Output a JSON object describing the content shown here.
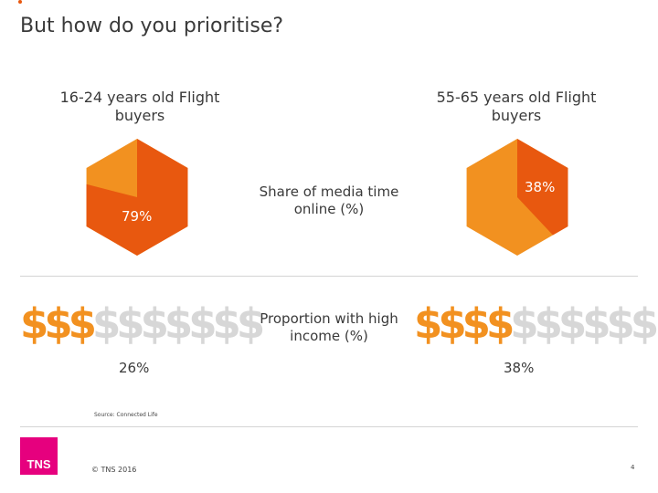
{
  "slide": {
    "title": "But how do you prioritise?",
    "page_number": "4",
    "source": "Source: Connected Life",
    "copyright": "© TNS 2016",
    "logo": "TNS"
  },
  "groups": [
    {
      "label": "16-24 years old Flight buyers"
    },
    {
      "label": "55-65 years old Flight buyers"
    }
  ],
  "metrics": {
    "media_label": "Share of media time online (%)",
    "income_label": "Proportion with high income (%)"
  },
  "colors": {
    "primary_orange": "#e8580f",
    "light_orange": "#f29120",
    "grey": "#d7d7d7",
    "brand_pink": "#e6007e"
  },
  "chart_data": [
    {
      "type": "pie",
      "shape": "hexagon",
      "title": "Share of media time online (%)",
      "series": "16-24 years old Flight buyers",
      "highlight": {
        "name": "online",
        "value": 79,
        "label": "79%"
      }
    },
    {
      "type": "pie",
      "shape": "hexagon",
      "title": "Share of media time online (%)",
      "series": "55-65 years old Flight buyers",
      "highlight": {
        "name": "online",
        "value": 38,
        "label": "38%"
      }
    },
    {
      "type": "pictogram",
      "title": "Proportion with high income (%)",
      "series": "16-24 years old Flight buyers",
      "symbol": "$",
      "total": 10,
      "value": 26,
      "label": "26%"
    },
    {
      "type": "pictogram",
      "title": "Proportion with high income (%)",
      "series": "55-65 years old Flight buyers",
      "symbol": "$",
      "total": 10,
      "value": 38,
      "label": "38%"
    }
  ]
}
